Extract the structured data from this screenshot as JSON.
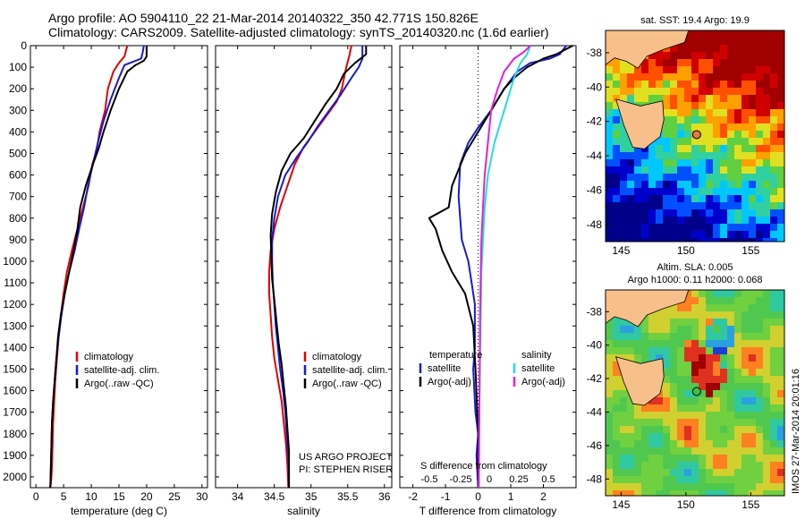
{
  "header": {
    "line1": "Argo profile: AO 5904110_22 21-Mar-2014 20140322_350 42.771S 150.826E",
    "line2": "Climatology: CARS2009. Satellite-adjusted climatology: synTS_20140320.nc (1.6d earlier)"
  },
  "side_label": "IMOS 27-Mar-2014 20:01:16",
  "colors": {
    "clim": "#e00000",
    "sat": "#1a1acc",
    "argo": "#000000",
    "sat_s": "#22dddd",
    "argo_s": "#e020e0"
  },
  "chart_data": [
    {
      "type": "line",
      "id": "temperature",
      "xlabel": "temperature (deg C)",
      "xlim": [
        -1,
        31
      ],
      "ylim": [
        2050,
        0
      ],
      "xticks": [
        0,
        5,
        10,
        15,
        20,
        25,
        30
      ],
      "yticks": [
        0,
        100,
        200,
        300,
        400,
        500,
        600,
        700,
        800,
        900,
        1000,
        1100,
        1200,
        1300,
        1400,
        1500,
        1600,
        1700,
        1800,
        1900,
        2000
      ],
      "legend": [
        "climatology",
        "satellite-adj. clim.",
        "Argo(..raw -QC)"
      ],
      "series": [
        {
          "name": "climatology",
          "color_key": "clim",
          "x": [
            16.5,
            16,
            15,
            14,
            13,
            12.5,
            11.5,
            11,
            10.2,
            9.5,
            8.5,
            7.5,
            6.5,
            5.6,
            5,
            4.5,
            4.1,
            3.8,
            3.5,
            3.3,
            3.1,
            3,
            2.9,
            2.8,
            2.7,
            2.6,
            2.5
          ],
          "y": [
            0,
            50,
            80,
            120,
            200,
            300,
            400,
            480,
            550,
            650,
            750,
            850,
            950,
            1050,
            1150,
            1250,
            1350,
            1450,
            1550,
            1650,
            1750,
            1850,
            1950,
            2000,
            2030,
            2040,
            2050
          ]
        },
        {
          "name": "satellite-adj. clim.",
          "color_key": "sat",
          "x": [
            19.5,
            19.3,
            19,
            18,
            16,
            15,
            13.5,
            12.2,
            11.2,
            10.3,
            9.4,
            8.7,
            7.8,
            7,
            6,
            5.2,
            4.6,
            4.1,
            3.7,
            3.4,
            3.1,
            2.9,
            2.8,
            2.7,
            2.6
          ],
          "y": [
            0,
            30,
            60,
            70,
            90,
            150,
            250,
            350,
            450,
            550,
            650,
            750,
            850,
            950,
            1050,
            1150,
            1250,
            1350,
            1450,
            1550,
            1650,
            1750,
            1850,
            1950,
            2050
          ]
        },
        {
          "name": "Argo(..raw -QC)",
          "color_key": "argo",
          "x": [
            20,
            20,
            19.5,
            18,
            16.5,
            15,
            13.5,
            12.2,
            11.3,
            10.3,
            9,
            8,
            7.5,
            6.8,
            6,
            5.2,
            4.5,
            4,
            3.7,
            3.4,
            3.1,
            2.9,
            2.8,
            2.7,
            2.6
          ],
          "y": [
            0,
            50,
            70,
            90,
            120,
            200,
            300,
            400,
            480,
            550,
            650,
            750,
            850,
            950,
            1050,
            1150,
            1250,
            1350,
            1450,
            1550,
            1650,
            1750,
            1850,
            1950,
            2050
          ]
        }
      ]
    },
    {
      "type": "line",
      "id": "salinity",
      "xlabel": "salinity",
      "xlim": [
        33.7,
        36.1
      ],
      "ylim": [
        2050,
        0
      ],
      "xticks": [
        34,
        34.5,
        35,
        35.5,
        36
      ],
      "legend": [
        "climatology",
        "satellite-adj. clim.",
        "Argo(..raw -QC)"
      ],
      "annotation": [
        "US ARGO PROJECT",
        "PI: STEPHEN RISER"
      ],
      "series": [
        {
          "name": "climatology",
          "color_key": "clim",
          "x": [
            35.55,
            35.52,
            35.48,
            35.45,
            35.42,
            35.35,
            35.2,
            35.05,
            34.9,
            34.78,
            34.68,
            34.58,
            34.5,
            34.45,
            34.43,
            34.43,
            34.45,
            34.47,
            34.5,
            34.55,
            34.6,
            34.63,
            34.66,
            34.68,
            34.69
          ],
          "y": [
            0,
            50,
            100,
            150,
            200,
            260,
            330,
            400,
            470,
            550,
            650,
            750,
            850,
            950,
            1050,
            1150,
            1250,
            1350,
            1450,
            1550,
            1650,
            1750,
            1850,
            1950,
            2050
          ]
        },
        {
          "name": "satellite-adj. clim.",
          "color_key": "sat",
          "x": [
            35.7,
            35.7,
            35.65,
            35.55,
            35.4,
            35.25,
            35.1,
            34.95,
            34.8,
            34.65,
            34.55,
            34.5,
            34.47,
            34.47,
            34.48,
            34.5,
            34.52,
            34.55,
            34.58,
            34.62,
            34.65,
            34.67,
            34.69,
            34.7
          ],
          "y": [
            0,
            60,
            100,
            150,
            230,
            300,
            370,
            450,
            520,
            600,
            700,
            800,
            900,
            1000,
            1100,
            1200,
            1300,
            1400,
            1500,
            1600,
            1700,
            1800,
            1900,
            2050
          ]
        },
        {
          "name": "Argo(..raw -QC)",
          "color_key": "argo",
          "x": [
            35.75,
            35.75,
            35.6,
            35.45,
            35.35,
            35.2,
            35.05,
            34.9,
            34.72,
            34.6,
            34.52,
            34.47,
            34.45,
            34.46,
            34.47,
            34.5,
            34.53,
            34.56,
            34.6,
            34.63,
            34.66,
            34.68,
            34.7,
            34.7
          ],
          "y": [
            0,
            40,
            80,
            130,
            200,
            270,
            350,
            430,
            500,
            580,
            680,
            780,
            880,
            980,
            1080,
            1180,
            1280,
            1380,
            1480,
            1580,
            1680,
            1780,
            1880,
            2050
          ]
        }
      ]
    },
    {
      "type": "line",
      "id": "differences",
      "xlabel": "T difference from climatology",
      "xlim": [
        -2.4,
        3.0
      ],
      "ylim": [
        2050,
        0
      ],
      "xticks": [
        -2,
        -1,
        0,
        1,
        2
      ],
      "top_label": "S difference from climatology",
      "top_ticks": [
        "-0.5",
        "-0.25",
        "0",
        "0.25",
        "0.5"
      ],
      "legend_headers": [
        "temperature",
        "salinity"
      ],
      "legend": [
        "satellite",
        "Argo(-adj)",
        "satellite",
        "Argo(-adj)"
      ],
      "series": [
        {
          "name": "satellite",
          "color_key": "sat",
          "x": [
            2.7,
            2.5,
            2.2,
            1.6,
            1.2,
            0.8,
            0.4,
            0,
            -0.3,
            -0.55,
            -0.6,
            -0.5,
            -0.3,
            -0.2,
            -0.1,
            -0.1,
            -0.15,
            -0.08,
            0,
            -0.05,
            0
          ],
          "y": [
            0,
            40,
            60,
            80,
            120,
            200,
            300,
            380,
            450,
            550,
            700,
            900,
            1000,
            1100,
            1200,
            1400,
            1500,
            1700,
            1800,
            1900,
            2050
          ]
        },
        {
          "name": "Argo(-adj)",
          "color_key": "argo",
          "x": [
            2.9,
            2.4,
            2,
            1.5,
            1.1,
            0.8,
            0.4,
            0,
            -0.4,
            -0.8,
            -0.9,
            -1.5,
            -1.3,
            -1.1,
            -0.8,
            -0.4,
            -0.15,
            -0.08,
            0,
            0
          ],
          "y": [
            0,
            40,
            60,
            100,
            150,
            200,
            300,
            400,
            500,
            650,
            750,
            800,
            850,
            950,
            1050,
            1150,
            1300,
            1500,
            1800,
            2050
          ]
        },
        {
          "name": "satellite",
          "color_key": "sat_s",
          "x": [
            1.6,
            1.5,
            1.3,
            1.1,
            0.9,
            0.7,
            0.5,
            0.3,
            0.2,
            0.15,
            0.1,
            0.08,
            0.06,
            0.04,
            0.03,
            0.02
          ],
          "y": [
            0,
            40,
            80,
            150,
            250,
            350,
            450,
            600,
            750,
            900,
            1050,
            1250,
            1450,
            1650,
            1850,
            2050
          ]
        },
        {
          "name": "Argo(-adj)",
          "color_key": "argo_s",
          "x": [
            1.6,
            1.4,
            1.1,
            0.8,
            0.6,
            0.4,
            0.3,
            0.2,
            0.15,
            0.1,
            0.08,
            0.06,
            0.05,
            0.04,
            0.03,
            0.02
          ],
          "y": [
            0,
            30,
            60,
            120,
            200,
            300,
            450,
            600,
            750,
            900,
            1050,
            1250,
            1450,
            1650,
            1850,
            2050
          ]
        }
      ]
    },
    {
      "type": "heatmap",
      "id": "sst-map",
      "title": "sat. SST: 19.4  Argo: 19.9",
      "xticks": [
        145,
        150,
        155
      ],
      "yticks": [
        -38,
        -40,
        -42,
        -44,
        -46,
        -48
      ],
      "xlim": [
        143.8,
        157.6
      ],
      "ylim": [
        -49,
        -36.7
      ],
      "float_position": [
        150.83,
        -42.77
      ]
    },
    {
      "type": "heatmap",
      "id": "sla-map",
      "title": [
        "Altim. SLA: 0.005",
        "Argo h1000: 0.11 h2000: 0.068"
      ],
      "xticks": [
        145,
        150,
        155
      ],
      "yticks": [
        -38,
        -40,
        -42,
        -44,
        -46,
        -48
      ],
      "xlim": [
        143.8,
        157.6
      ],
      "ylim": [
        -49,
        -36.7
      ],
      "float_position": [
        150.83,
        -42.77
      ]
    }
  ]
}
